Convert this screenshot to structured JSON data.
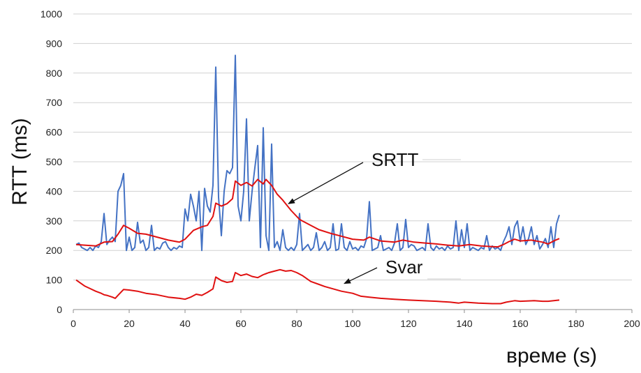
{
  "chart_data": {
    "type": "line",
    "xlabel": "време (s)",
    "ylabel": "RTT (ms)",
    "xlim": [
      0,
      200
    ],
    "ylim": [
      0,
      1000
    ],
    "xticks": [
      0,
      20,
      40,
      60,
      80,
      100,
      120,
      140,
      160,
      180,
      200
    ],
    "yticks": [
      0,
      100,
      200,
      300,
      400,
      500,
      600,
      700,
      800,
      900,
      1000
    ],
    "grid": "horizontal",
    "series": [
      {
        "key": "rtt",
        "color": "#4472C4",
        "points": [
          [
            1,
            220
          ],
          [
            2,
            225
          ],
          [
            3,
            210
          ],
          [
            4,
            205
          ],
          [
            5,
            200
          ],
          [
            6,
            210
          ],
          [
            7,
            200
          ],
          [
            8,
            215
          ],
          [
            9,
            210
          ],
          [
            10,
            230
          ],
          [
            11,
            325
          ],
          [
            12,
            220
          ],
          [
            13,
            235
          ],
          [
            14,
            245
          ],
          [
            15,
            230
          ],
          [
            16,
            400
          ],
          [
            17,
            420
          ],
          [
            18,
            460
          ],
          [
            19,
            200
          ],
          [
            20,
            245
          ],
          [
            21,
            200
          ],
          [
            22,
            210
          ],
          [
            23,
            295
          ],
          [
            24,
            225
          ],
          [
            25,
            235
          ],
          [
            26,
            200
          ],
          [
            27,
            210
          ],
          [
            28,
            285
          ],
          [
            29,
            200
          ],
          [
            30,
            210
          ],
          [
            31,
            205
          ],
          [
            32,
            225
          ],
          [
            33,
            230
          ],
          [
            34,
            210
          ],
          [
            35,
            200
          ],
          [
            36,
            210
          ],
          [
            37,
            205
          ],
          [
            38,
            215
          ],
          [
            39,
            210
          ],
          [
            40,
            340
          ],
          [
            41,
            300
          ],
          [
            42,
            390
          ],
          [
            43,
            350
          ],
          [
            44,
            300
          ],
          [
            45,
            400
          ],
          [
            46,
            200
          ],
          [
            47,
            410
          ],
          [
            48,
            350
          ],
          [
            49,
            330
          ],
          [
            50,
            420
          ],
          [
            51,
            820
          ],
          [
            52,
            380
          ],
          [
            53,
            250
          ],
          [
            54,
            400
          ],
          [
            55,
            470
          ],
          [
            56,
            460
          ],
          [
            57,
            480
          ],
          [
            58,
            860
          ],
          [
            59,
            350
          ],
          [
            60,
            300
          ],
          [
            61,
            400
          ],
          [
            62,
            645
          ],
          [
            63,
            300
          ],
          [
            64,
            400
          ],
          [
            65,
            480
          ],
          [
            66,
            555
          ],
          [
            67,
            210
          ],
          [
            68,
            615
          ],
          [
            69,
            250
          ],
          [
            70,
            200
          ],
          [
            71,
            560
          ],
          [
            72,
            210
          ],
          [
            73,
            230
          ],
          [
            74,
            200
          ],
          [
            75,
            270
          ],
          [
            76,
            210
          ],
          [
            77,
            200
          ],
          [
            78,
            210
          ],
          [
            79,
            200
          ],
          [
            80,
            220
          ],
          [
            81,
            325
          ],
          [
            82,
            200
          ],
          [
            83,
            210
          ],
          [
            84,
            220
          ],
          [
            85,
            200
          ],
          [
            86,
            210
          ],
          [
            87,
            260
          ],
          [
            88,
            200
          ],
          [
            89,
            210
          ],
          [
            90,
            230
          ],
          [
            91,
            200
          ],
          [
            92,
            210
          ],
          [
            93,
            290
          ],
          [
            94,
            200
          ],
          [
            95,
            205
          ],
          [
            96,
            290
          ],
          [
            97,
            210
          ],
          [
            98,
            200
          ],
          [
            99,
            230
          ],
          [
            100,
            205
          ],
          [
            101,
            210
          ],
          [
            102,
            200
          ],
          [
            103,
            215
          ],
          [
            104,
            210
          ],
          [
            105,
            240
          ],
          [
            106,
            365
          ],
          [
            107,
            200
          ],
          [
            108,
            205
          ],
          [
            109,
            210
          ],
          [
            110,
            250
          ],
          [
            111,
            200
          ],
          [
            112,
            205
          ],
          [
            113,
            210
          ],
          [
            114,
            200
          ],
          [
            115,
            225
          ],
          [
            116,
            290
          ],
          [
            117,
            200
          ],
          [
            118,
            210
          ],
          [
            119,
            305
          ],
          [
            120,
            210
          ],
          [
            121,
            220
          ],
          [
            122,
            215
          ],
          [
            123,
            200
          ],
          [
            124,
            205
          ],
          [
            125,
            210
          ],
          [
            126,
            200
          ],
          [
            127,
            290
          ],
          [
            128,
            210
          ],
          [
            129,
            200
          ],
          [
            130,
            215
          ],
          [
            131,
            205
          ],
          [
            132,
            210
          ],
          [
            133,
            200
          ],
          [
            134,
            215
          ],
          [
            135,
            205
          ],
          [
            136,
            210
          ],
          [
            137,
            300
          ],
          [
            138,
            200
          ],
          [
            139,
            270
          ],
          [
            140,
            210
          ],
          [
            141,
            290
          ],
          [
            142,
            200
          ],
          [
            143,
            210
          ],
          [
            144,
            205
          ],
          [
            145,
            200
          ],
          [
            146,
            210
          ],
          [
            147,
            205
          ],
          [
            148,
            250
          ],
          [
            149,
            200
          ],
          [
            150,
            215
          ],
          [
            151,
            205
          ],
          [
            152,
            210
          ],
          [
            153,
            200
          ],
          [
            154,
            230
          ],
          [
            155,
            250
          ],
          [
            156,
            280
          ],
          [
            157,
            220
          ],
          [
            158,
            280
          ],
          [
            159,
            300
          ],
          [
            160,
            230
          ],
          [
            161,
            280
          ],
          [
            162,
            220
          ],
          [
            163,
            240
          ],
          [
            164,
            280
          ],
          [
            165,
            220
          ],
          [
            166,
            250
          ],
          [
            167,
            205
          ],
          [
            168,
            220
          ],
          [
            169,
            240
          ],
          [
            170,
            210
          ],
          [
            171,
            280
          ],
          [
            172,
            210
          ],
          [
            173,
            290
          ],
          [
            174,
            320
          ]
        ]
      },
      {
        "key": "srtt",
        "color": "#E01010",
        "points": [
          [
            1,
            220
          ],
          [
            4,
            218
          ],
          [
            8,
            215
          ],
          [
            11,
            228
          ],
          [
            14,
            230
          ],
          [
            16,
            255
          ],
          [
            18,
            285
          ],
          [
            20,
            275
          ],
          [
            23,
            258
          ],
          [
            26,
            255
          ],
          [
            30,
            245
          ],
          [
            34,
            235
          ],
          [
            38,
            228
          ],
          [
            40,
            238
          ],
          [
            43,
            268
          ],
          [
            46,
            280
          ],
          [
            48,
            285
          ],
          [
            50,
            315
          ],
          [
            51,
            360
          ],
          [
            53,
            350
          ],
          [
            55,
            358
          ],
          [
            57,
            375
          ],
          [
            58,
            435
          ],
          [
            60,
            420
          ],
          [
            62,
            430
          ],
          [
            64,
            418
          ],
          [
            66,
            440
          ],
          [
            68,
            425
          ],
          [
            69,
            440
          ],
          [
            71,
            420
          ],
          [
            73,
            390
          ],
          [
            75,
            370
          ],
          [
            78,
            335
          ],
          [
            81,
            305
          ],
          [
            85,
            285
          ],
          [
            88,
            270
          ],
          [
            92,
            258
          ],
          [
            96,
            248
          ],
          [
            100,
            238
          ],
          [
            104,
            235
          ],
          [
            106,
            245
          ],
          [
            110,
            232
          ],
          [
            115,
            228
          ],
          [
            118,
            235
          ],
          [
            122,
            228
          ],
          [
            126,
            225
          ],
          [
            130,
            222
          ],
          [
            134,
            218
          ],
          [
            138,
            215
          ],
          [
            142,
            220
          ],
          [
            146,
            215
          ],
          [
            150,
            213
          ],
          [
            152,
            212
          ],
          [
            154,
            220
          ],
          [
            156,
            230
          ],
          [
            158,
            238
          ],
          [
            160,
            232
          ],
          [
            164,
            235
          ],
          [
            168,
            228
          ],
          [
            170,
            222
          ],
          [
            172,
            232
          ],
          [
            174,
            240
          ]
        ]
      },
      {
        "key": "svar",
        "color": "#E01010",
        "points": [
          [
            1,
            100
          ],
          [
            4,
            80
          ],
          [
            8,
            62
          ],
          [
            10,
            55
          ],
          [
            11,
            50
          ],
          [
            12,
            48
          ],
          [
            14,
            42
          ],
          [
            15,
            38
          ],
          [
            16,
            48
          ],
          [
            18,
            68
          ],
          [
            20,
            66
          ],
          [
            23,
            62
          ],
          [
            26,
            55
          ],
          [
            30,
            50
          ],
          [
            34,
            42
          ],
          [
            38,
            38
          ],
          [
            40,
            35
          ],
          [
            42,
            42
          ],
          [
            44,
            52
          ],
          [
            46,
            48
          ],
          [
            48,
            58
          ],
          [
            50,
            70
          ],
          [
            51,
            110
          ],
          [
            53,
            98
          ],
          [
            55,
            92
          ],
          [
            57,
            95
          ],
          [
            58,
            125
          ],
          [
            60,
            115
          ],
          [
            62,
            120
          ],
          [
            64,
            112
          ],
          [
            66,
            108
          ],
          [
            68,
            118
          ],
          [
            70,
            125
          ],
          [
            72,
            130
          ],
          [
            74,
            135
          ],
          [
            76,
            130
          ],
          [
            78,
            132
          ],
          [
            80,
            125
          ],
          [
            82,
            115
          ],
          [
            85,
            95
          ],
          [
            88,
            85
          ],
          [
            90,
            78
          ],
          [
            93,
            70
          ],
          [
            96,
            62
          ],
          [
            100,
            55
          ],
          [
            103,
            45
          ],
          [
            106,
            42
          ],
          [
            110,
            38
          ],
          [
            115,
            35
          ],
          [
            120,
            32
          ],
          [
            125,
            30
          ],
          [
            130,
            28
          ],
          [
            135,
            25
          ],
          [
            138,
            22
          ],
          [
            140,
            25
          ],
          [
            145,
            22
          ],
          [
            150,
            20
          ],
          [
            153,
            20
          ],
          [
            155,
            25
          ],
          [
            158,
            30
          ],
          [
            160,
            28
          ],
          [
            165,
            30
          ],
          [
            168,
            28
          ],
          [
            170,
            28
          ],
          [
            172,
            30
          ],
          [
            174,
            32
          ]
        ]
      }
    ],
    "annotations": [
      {
        "text": "SRTT",
        "target": [
          77,
          358
        ]
      },
      {
        "text": "Svar",
        "target": [
          97,
          88
        ]
      }
    ]
  }
}
